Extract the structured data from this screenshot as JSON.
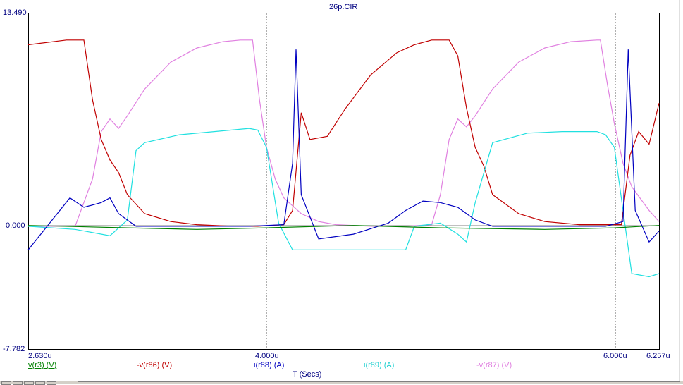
{
  "title": "26p.CIR",
  "axis": {
    "y_max_label": "13.490",
    "y_zero_label": "0.000",
    "y_min_label": "-7.782",
    "x_start_label": "2.630u",
    "x_tick_4": "4.000u",
    "x_tick_6": "6.000u",
    "x_end_label": "6.257u",
    "x_title": "T (Secs)"
  },
  "legend": [
    {
      "label": "v(r3) (V)",
      "color": "#008000"
    },
    {
      "label": "-v(r86) (V)",
      "color": "#c00000"
    },
    {
      "label": "i(r88) (A)",
      "color": "#0000c0"
    },
    {
      "label": "i(r89) (A)",
      "color": "#20e0e0"
    },
    {
      "label": "-v(r87) (V)",
      "color": "#e080e0"
    }
  ],
  "chart_data": {
    "type": "line",
    "title": "26p.CIR",
    "xlabel": "T (Secs)",
    "ylabel": "",
    "xlim": [
      2.63,
      6.257
    ],
    "ylim": [
      -7.782,
      13.49
    ],
    "x_ticks": [
      4.0,
      6.0
    ],
    "grid": "dotted vertical lines at x ticks",
    "series": [
      {
        "name": "v(r3) (V)",
        "color": "#008000",
        "x": [
          2.63,
          3.2,
          3.6,
          4.0,
          4.5,
          5.0,
          5.6,
          6.0,
          6.257
        ],
        "y": [
          0.05,
          -0.1,
          -0.2,
          -0.1,
          0.05,
          -0.1,
          -0.2,
          -0.1,
          0.05
        ]
      },
      {
        "name": "-v(r86) (V)",
        "color": "#c00000",
        "x": [
          2.63,
          2.85,
          2.95,
          3.0,
          3.05,
          3.1,
          3.15,
          3.2,
          3.3,
          3.45,
          3.6,
          3.8,
          3.95,
          4.1,
          4.15,
          4.2,
          4.25,
          4.35,
          4.45,
          4.6,
          4.75,
          4.85,
          4.95,
          5.0,
          5.05,
          5.1,
          5.15,
          5.2,
          5.25,
          5.3,
          5.45,
          5.6,
          5.8,
          5.95,
          6.04,
          6.09,
          6.14,
          6.2,
          6.257
        ],
        "y": [
          11.5,
          11.8,
          11.8,
          8.0,
          5.5,
          4.2,
          3.4,
          2.0,
          0.8,
          0.3,
          0.1,
          0.0,
          0.0,
          0.1,
          1.0,
          7.2,
          5.5,
          5.7,
          7.4,
          9.6,
          11.0,
          11.5,
          11.8,
          11.8,
          11.8,
          10.8,
          7.5,
          5.0,
          3.8,
          2.0,
          0.8,
          0.3,
          0.1,
          0.1,
          0.1,
          4.5,
          6.0,
          5.2,
          7.8
        ]
      },
      {
        "name": "i(r88) (A)",
        "color": "#0000c0",
        "x": [
          2.63,
          2.87,
          2.95,
          3.05,
          3.1,
          3.15,
          3.25,
          3.5,
          3.9,
          4.1,
          4.15,
          4.17,
          4.2,
          4.3,
          4.5,
          4.7,
          4.8,
          4.9,
          5.0,
          5.1,
          5.2,
          5.3,
          5.5,
          5.7,
          5.95,
          6.05,
          6.08,
          6.12,
          6.2,
          6.257
        ],
        "y": [
          -1.5,
          1.8,
          1.2,
          1.5,
          1.8,
          0.8,
          0.0,
          0.0,
          0.0,
          0.1,
          4.0,
          11.2,
          2.0,
          -0.8,
          -0.5,
          0.2,
          1.0,
          1.6,
          1.5,
          1.2,
          0.4,
          0.0,
          0.0,
          0.0,
          0.0,
          0.3,
          11.2,
          1.0,
          -1.0,
          -0.3
        ]
      },
      {
        "name": "i(r89) (A)",
        "color": "#20e0e0",
        "x": [
          2.63,
          2.9,
          3.1,
          3.2,
          3.25,
          3.3,
          3.5,
          3.7,
          3.9,
          3.95,
          4.0,
          4.07,
          4.15,
          4.2,
          4.5,
          4.8,
          4.85,
          5.0,
          5.1,
          5.15,
          5.2,
          5.3,
          5.5,
          5.7,
          5.9,
          5.95,
          6.0,
          6.06,
          6.1,
          6.2,
          6.257
        ],
        "y": [
          0.0,
          -0.2,
          -0.6,
          0.4,
          4.8,
          5.3,
          5.8,
          6.0,
          6.2,
          6.1,
          5.0,
          0.2,
          -1.5,
          -1.5,
          -1.5,
          -1.5,
          0.0,
          0.2,
          -0.5,
          -1.0,
          1.5,
          5.3,
          5.9,
          6.0,
          6.0,
          5.8,
          5.0,
          0.2,
          -3.0,
          -3.2,
          -3.0
        ]
      },
      {
        "name": "-v(r87) (V)",
        "color": "#e080e0",
        "x": [
          2.63,
          2.9,
          3.0,
          3.05,
          3.1,
          3.15,
          3.2,
          3.3,
          3.45,
          3.6,
          3.75,
          3.85,
          3.92,
          3.96,
          4.0,
          4.05,
          4.1,
          4.2,
          4.3,
          4.4,
          4.6,
          4.8,
          4.95,
          5.0,
          5.05,
          5.1,
          5.15,
          5.2,
          5.3,
          5.45,
          5.6,
          5.75,
          5.9,
          5.92,
          5.96,
          6.0,
          6.05,
          6.1,
          6.2,
          6.257
        ],
        "y": [
          0.0,
          0.0,
          3.0,
          6.0,
          6.8,
          6.2,
          7.0,
          8.7,
          10.4,
          11.3,
          11.7,
          11.8,
          11.8,
          8.0,
          5.0,
          3.0,
          1.8,
          0.8,
          0.3,
          0.1,
          0.0,
          0.0,
          0.1,
          2.0,
          5.5,
          6.8,
          6.3,
          7.0,
          8.7,
          10.4,
          11.3,
          11.7,
          11.8,
          11.8,
          9.0,
          6.5,
          4.0,
          2.5,
          1.0,
          0.3
        ]
      }
    ]
  }
}
